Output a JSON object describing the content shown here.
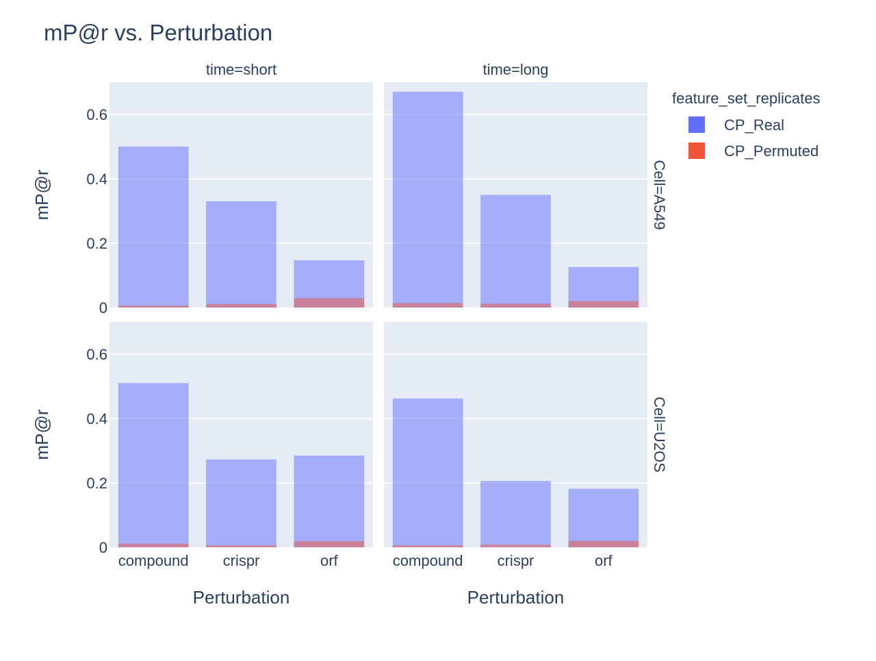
{
  "chart_data": {
    "type": "bar",
    "title": "mP@r vs. Perturbation",
    "categories": [
      "compound",
      "crispr",
      "orf"
    ],
    "xlabel": "Perturbation",
    "ylabel": "mP@r",
    "ylim": [
      0,
      0.7
    ],
    "yticks": [
      0,
      0.2,
      0.4,
      0.6
    ],
    "ytick_labels": [
      "0",
      "0.2",
      "0.4",
      "0.6"
    ],
    "barmode": "overlay",
    "grid": true,
    "legend": {
      "title": "feature_set_replicates",
      "placement": "top-right",
      "items": [
        {
          "name": "CP_Real",
          "color": "#636efa"
        },
        {
          "name": "CP_Permuted",
          "color": "#ef553b"
        }
      ]
    },
    "columns": [
      "time=short",
      "time=long"
    ],
    "rows": [
      "Cell=A549",
      "Cell=U2OS"
    ],
    "panels": [
      {
        "row": 0,
        "col": 0,
        "series": [
          {
            "name": "CP_Real",
            "values": [
              0.5,
              0.33,
              0.147
            ]
          },
          {
            "name": "CP_Permuted",
            "values": [
              0.006,
              0.011,
              0.029
            ]
          }
        ]
      },
      {
        "row": 0,
        "col": 1,
        "series": [
          {
            "name": "CP_Real",
            "values": [
              0.67,
              0.35,
              0.126
            ]
          },
          {
            "name": "CP_Permuted",
            "values": [
              0.014,
              0.012,
              0.02
            ]
          }
        ]
      },
      {
        "row": 1,
        "col": 0,
        "series": [
          {
            "name": "CP_Real",
            "values": [
              0.51,
              0.273,
              0.285
            ]
          },
          {
            "name": "CP_Permuted",
            "values": [
              0.011,
              0.006,
              0.019
            ]
          }
        ]
      },
      {
        "row": 1,
        "col": 1,
        "series": [
          {
            "name": "CP_Real",
            "values": [
              0.462,
              0.206,
              0.182
            ]
          },
          {
            "name": "CP_Permuted",
            "values": [
              0.006,
              0.008,
              0.02
            ]
          }
        ]
      }
    ],
    "colors": {
      "plot_bg": "#e5ecf6",
      "grid": "#ffffff",
      "text": "#2a3f5f",
      "real": "#636efa",
      "permuted": "#ef553b"
    }
  }
}
